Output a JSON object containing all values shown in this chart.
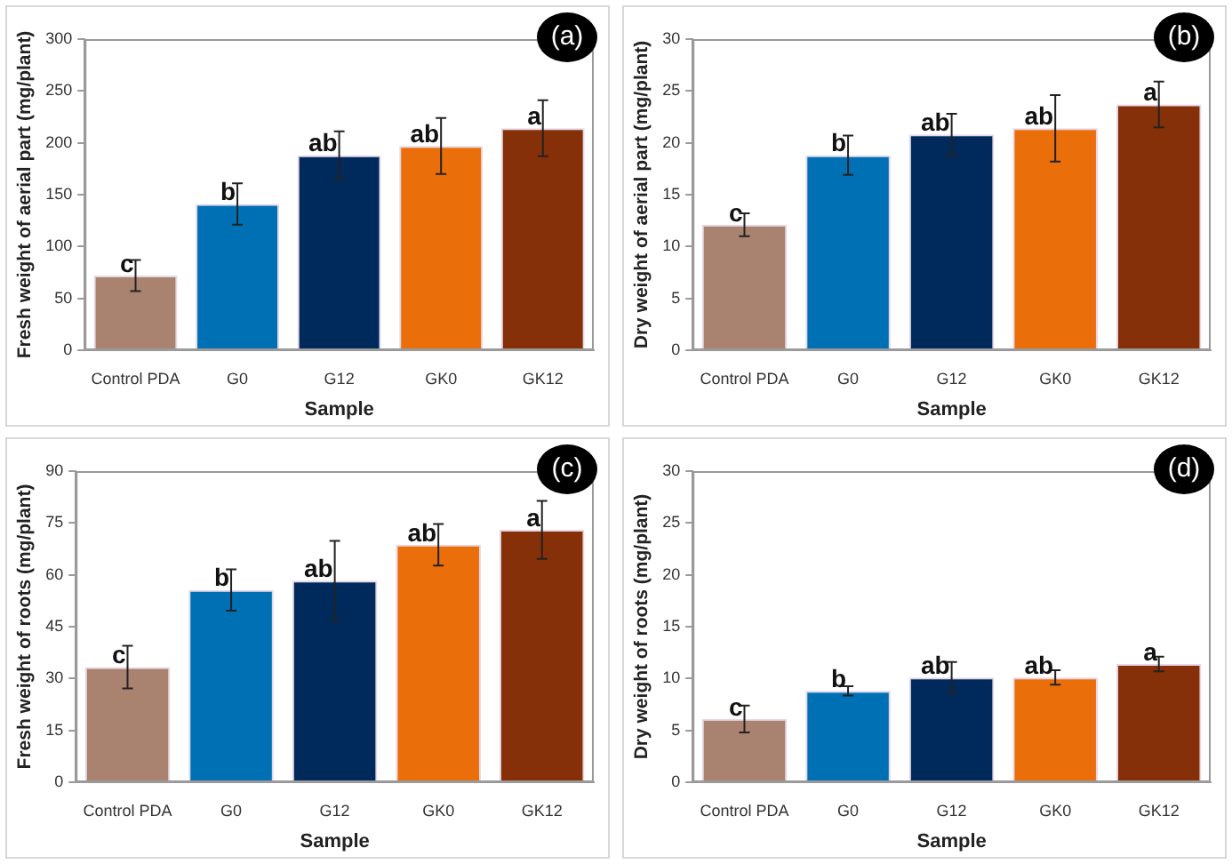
{
  "chart_data": [
    {
      "type": "bar",
      "title": "(a)",
      "xlabel": "Sample",
      "ylabel": "Fresh weight of aerial part (mg/plant)",
      "categories": [
        "Control PDA",
        "G0",
        "G12",
        "GK0",
        "GK12"
      ],
      "values": [
        72,
        141,
        188,
        197,
        214
      ],
      "errors": [
        15,
        20,
        23,
        27,
        27
      ],
      "colors": [
        "#a98370",
        "#0070b5",
        "#002a5c",
        "#ea6e0a",
        "#853008"
      ],
      "ylim": [
        0,
        300
      ],
      "yticks": [
        0,
        50,
        100,
        150,
        200,
        250,
        300
      ],
      "annotations": [
        {
          "text": "c",
          "x": "Control PDA",
          "y": 72
        },
        {
          "text": "b",
          "x": "G0",
          "y": 141
        },
        {
          "text": "ab",
          "x": "G12",
          "y": 188
        },
        {
          "text": "ab",
          "x": "GK0",
          "y": 197
        },
        {
          "text": "a",
          "x": "GK12",
          "y": 214
        }
      ]
    },
    {
      "type": "bar",
      "title": "(b)",
      "xlabel": "Sample",
      "ylabel": "Dry weight of aerial part (mg/plant)",
      "categories": [
        "Control PDA",
        "G0",
        "G12",
        "GK0",
        "GK12"
      ],
      "values": [
        12.1,
        18.8,
        20.8,
        21.4,
        23.7
      ],
      "errors": [
        1.1,
        1.9,
        2.0,
        3.2,
        2.2
      ],
      "colors": [
        "#a98370",
        "#0070b5",
        "#002a5c",
        "#ea6e0a",
        "#853008"
      ],
      "ylim": [
        0,
        30
      ],
      "yticks": [
        0,
        5,
        10,
        15,
        20,
        25,
        30
      ],
      "annotations": [
        {
          "text": "c",
          "x": "Control PDA",
          "y": 12.1
        },
        {
          "text": "b",
          "x": "G0",
          "y": 18.8
        },
        {
          "text": "ab",
          "x": "G12",
          "y": 20.8
        },
        {
          "text": "ab",
          "x": "GK0",
          "y": 21.4
        },
        {
          "text": "a",
          "x": "GK12",
          "y": 23.7
        }
      ]
    },
    {
      "type": "bar",
      "title": "(c)",
      "xlabel": "Sample",
      "ylabel": "Fresh weight of roots (mg/plant)",
      "categories": [
        "Control PDA",
        "G0",
        "G12",
        "GK0",
        "GK12"
      ],
      "values": [
        33.3,
        55.6,
        58.3,
        68.7,
        73.0
      ],
      "errors": [
        6.2,
        6.0,
        11.5,
        6.0,
        8.4
      ],
      "colors": [
        "#a98370",
        "#0070b5",
        "#002a5c",
        "#ea6e0a",
        "#853008"
      ],
      "ylim": [
        0,
        90
      ],
      "yticks": [
        0,
        15,
        30,
        45,
        60,
        75,
        90
      ],
      "annotations": [
        {
          "text": "c",
          "x": "Control PDA",
          "y": 33.3
        },
        {
          "text": "b",
          "x": "G0",
          "y": 55.6
        },
        {
          "text": "ab",
          "x": "G12",
          "y": 58.3
        },
        {
          "text": "ab",
          "x": "GK0",
          "y": 68.7
        },
        {
          "text": "a",
          "x": "GK12",
          "y": 73.0
        }
      ]
    },
    {
      "type": "bar",
      "title": "(d)",
      "xlabel": "Sample",
      "ylabel": "Dry weight of roots (mg/plant)",
      "categories": [
        "Control PDA",
        "G0",
        "G12",
        "GK0",
        "GK12"
      ],
      "values": [
        6.1,
        8.8,
        10.1,
        10.1,
        11.4
      ],
      "errors": [
        1.3,
        0.45,
        1.5,
        0.7,
        0.7
      ],
      "colors": [
        "#a98370",
        "#0070b5",
        "#002a5c",
        "#ea6e0a",
        "#853008"
      ],
      "ylim": [
        0,
        30
      ],
      "yticks": [
        0,
        5,
        10,
        15,
        20,
        25,
        30
      ],
      "annotations": [
        {
          "text": "c",
          "x": "Control PDA",
          "y": 6.1
        },
        {
          "text": "b",
          "x": "G0",
          "y": 8.8
        },
        {
          "text": "ab",
          "x": "G12",
          "y": 10.1
        },
        {
          "text": "ab",
          "x": "GK0",
          "y": 10.1
        },
        {
          "text": "a",
          "x": "GK12",
          "y": 11.4
        }
      ]
    }
  ]
}
